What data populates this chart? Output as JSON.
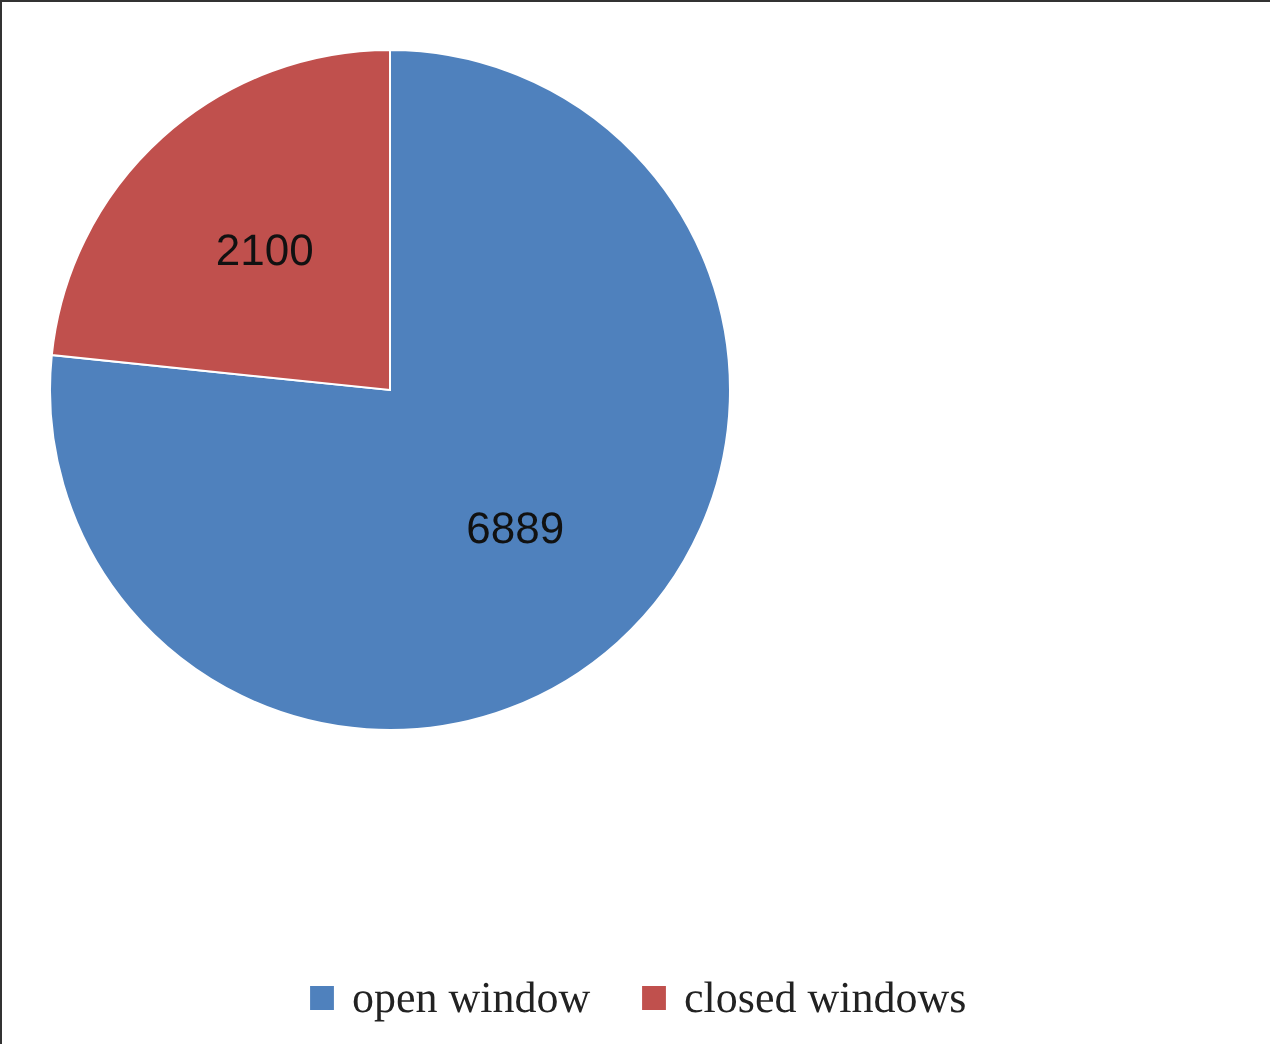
{
  "chart_data": {
    "type": "pie",
    "categories": [
      "open window",
      "closed windows"
    ],
    "values": [
      6889,
      2100
    ],
    "colors": [
      "#4f81bd",
      "#c0504d"
    ],
    "data_labels": true,
    "legend": "bottom"
  }
}
